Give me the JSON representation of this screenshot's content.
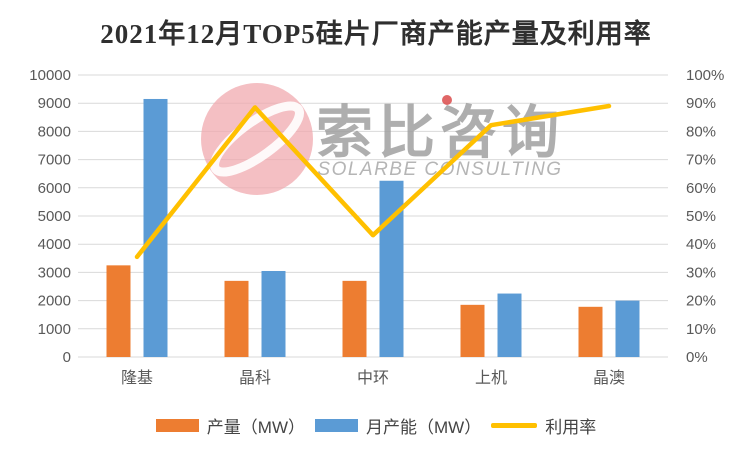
{
  "watermark": {
    "cn": "索比咨询",
    "en": "SOLARBE CONSULTING"
  },
  "colors": {
    "production": "#ED7D31",
    "capacity": "#5B9BD5",
    "utilization": "#FFC000",
    "gridline": "#D9D9D9",
    "axis_text": "#595959",
    "title_text": "#2F2F2F",
    "watermark_pink": "#F0A6AC",
    "watermark_red_dot": "#DB4B4B"
  },
  "chart_data": {
    "type": "bar",
    "subtype": "combo-bar-line-dual-axis",
    "title": "2021年12月TOP5硅片厂商产能产量及利用率",
    "categories": [
      "隆基",
      "晶科",
      "中环",
      "上机",
      "晶澳"
    ],
    "series": [
      {
        "name": "产量（MW）",
        "type": "bar",
        "axis": "left",
        "color": "#ED7D31",
        "values": [
          3250,
          2700,
          2700,
          1850,
          1780
        ]
      },
      {
        "name": "月产能（MW）",
        "type": "bar",
        "axis": "left",
        "color": "#5B9BD5",
        "values": [
          9150,
          3050,
          6250,
          2250,
          2000
        ]
      },
      {
        "name": "利用率",
        "type": "line",
        "axis": "right",
        "color": "#FFC000",
        "values": [
          35.5,
          88.5,
          43.2,
          82.2,
          89.0
        ]
      }
    ],
    "left_axis": {
      "min": 0,
      "max": 10000,
      "step": 1000,
      "tick_labels": [
        "0",
        "1000",
        "2000",
        "3000",
        "4000",
        "5000",
        "6000",
        "7000",
        "8000",
        "9000",
        "10000"
      ]
    },
    "right_axis": {
      "min": 0,
      "max": 100,
      "step": 10,
      "tick_labels": [
        "0%",
        "10%",
        "20%",
        "30%",
        "40%",
        "50%",
        "60%",
        "70%",
        "80%",
        "90%",
        "100%"
      ]
    },
    "grid": true,
    "legend_position": "bottom"
  }
}
